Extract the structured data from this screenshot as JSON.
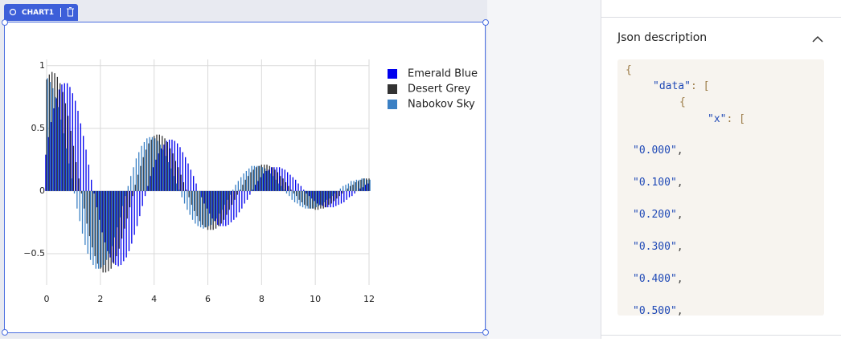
{
  "toolbar": {
    "tab_label": "CHART1"
  },
  "chart_data": {
    "type": "bar",
    "x": [
      0,
      0.1,
      0.2,
      0.3,
      0.4,
      0.5,
      0.6,
      0.7,
      0.8,
      0.9,
      1,
      1.1,
      1.2,
      1.3,
      1.4,
      1.5,
      1.6,
      1.7,
      1.8,
      1.9,
      2,
      2.1,
      2.2,
      2.3,
      2.4,
      2.5,
      2.6,
      2.7,
      2.8,
      2.9,
      3,
      3.1,
      3.2,
      3.3,
      3.4,
      3.5,
      3.6,
      3.7,
      3.8,
      3.9,
      4,
      4.1,
      4.2,
      4.3,
      4.4,
      4.5,
      4.6,
      4.7,
      4.8,
      4.9,
      5,
      5.1,
      5.2,
      5.3,
      5.4,
      5.5,
      5.6,
      5.7,
      5.8,
      5.9,
      6,
      6.1,
      6.2,
      6.3,
      6.4,
      6.5,
      6.6,
      6.7,
      6.8,
      6.9,
      7,
      7.1,
      7.2,
      7.3,
      7.4,
      7.5,
      7.6,
      7.7,
      7.8,
      7.9,
      8,
      8.1,
      8.2,
      8.3,
      8.4,
      8.5,
      8.6,
      8.7,
      8.8,
      8.9,
      9,
      9.1,
      9.2,
      9.3,
      9.4,
      9.5,
      9.6,
      9.7,
      9.8,
      9.9,
      10,
      10.1,
      10.2,
      10.3,
      10.4,
      10.5,
      10.6,
      10.7,
      10.8,
      10.9,
      11,
      11.1,
      11.2,
      11.3,
      11.4,
      11.5,
      11.6,
      11.7,
      11.8,
      11.9,
      12
    ],
    "series": [
      {
        "name": "Emerald Blue",
        "color": "#0000ee",
        "values": [
          0.29,
          0.43,
          0.55,
          0.66,
          0.74,
          0.81,
          0.85,
          0.86,
          0.86,
          0.83,
          0.78,
          0.72,
          0.64,
          0.54,
          0.44,
          0.33,
          0.21,
          0.09,
          -0.02,
          -0.13,
          -0.23,
          -0.33,
          -0.41,
          -0.48,
          -0.53,
          -0.57,
          -0.59,
          -0.6,
          -0.59,
          -0.56,
          -0.53,
          -0.48,
          -0.42,
          -0.35,
          -0.28,
          -0.2,
          -0.12,
          -0.04,
          0.04,
          0.12,
          0.19,
          0.25,
          0.3,
          0.34,
          0.37,
          0.4,
          0.41,
          0.41,
          0.4,
          0.38,
          0.35,
          0.31,
          0.27,
          0.22,
          0.17,
          0.12,
          0.06,
          0,
          -0.05,
          -0.1,
          -0.14,
          -0.18,
          -0.22,
          -0.24,
          -0.27,
          -0.28,
          -0.28,
          -0.28,
          -0.27,
          -0.25,
          -0.23,
          -0.21,
          -0.17,
          -0.14,
          -0.1,
          -0.07,
          -0.03,
          0.01,
          0.05,
          0.08,
          0.11,
          0.14,
          0.16,
          0.17,
          0.19,
          0.19,
          0.19,
          0.19,
          0.18,
          0.17,
          0.15,
          0.13,
          0.11,
          0.09,
          0.06,
          0.04,
          0.01,
          -0.02,
          -0.04,
          -0.06,
          -0.08,
          -0.1,
          -0.11,
          -0.12,
          -0.13,
          -0.13,
          -0.13,
          -0.13,
          -0.12,
          -0.11,
          -0.1,
          -0.09,
          -0.07,
          -0.05,
          -0.04,
          -0.02,
          0,
          0.02,
          0.03,
          0.05,
          0.06
        ]
      },
      {
        "name": "Desert Grey",
        "color": "#333333",
        "values": [
          0.89,
          0.93,
          0.95,
          0.94,
          0.91,
          0.86,
          0.79,
          0.7,
          0.6,
          0.48,
          0.36,
          0.23,
          0.1,
          -0.02,
          -0.14,
          -0.26,
          -0.36,
          -0.45,
          -0.52,
          -0.58,
          -0.62,
          -0.65,
          -0.65,
          -0.64,
          -0.62,
          -0.58,
          -0.52,
          -0.46,
          -0.38,
          -0.3,
          -0.22,
          -0.13,
          -0.04,
          0.05,
          0.13,
          0.2,
          0.27,
          0.33,
          0.38,
          0.41,
          0.44,
          0.45,
          0.45,
          0.44,
          0.42,
          0.39,
          0.34,
          0.3,
          0.24,
          0.19,
          0.13,
          0.07,
          0.01,
          -0.05,
          -0.11,
          -0.16,
          -0.2,
          -0.24,
          -0.27,
          -0.29,
          -0.31,
          -0.31,
          -0.31,
          -0.3,
          -0.28,
          -0.26,
          -0.23,
          -0.19,
          -0.15,
          -0.11,
          -0.07,
          -0.03,
          0.01,
          0.05,
          0.09,
          0.12,
          0.15,
          0.17,
          0.19,
          0.2,
          0.21,
          0.21,
          0.21,
          0.2,
          0.19,
          0.17,
          0.15,
          0.12,
          0.1,
          0.07,
          0.04,
          0.01,
          -0.02,
          -0.04,
          -0.07,
          -0.09,
          -0.11,
          -0.12,
          -0.14,
          -0.14,
          -0.15,
          -0.15,
          -0.14,
          -0.14,
          -0.13,
          -0.11,
          -0.1,
          -0.08,
          -0.06,
          -0.04,
          -0.02,
          0,
          0.02,
          0.04,
          0.05,
          0.07,
          0.08,
          0.09,
          0.1,
          0.1,
          0.1
        ]
      },
      {
        "name": "Nabokov Sky",
        "color": "#3b80c4",
        "values": [
          0.9,
          0.87,
          0.82,
          0.75,
          0.67,
          0.57,
          0.46,
          0.34,
          0.22,
          0.1,
          -0.02,
          -0.14,
          -0.24,
          -0.34,
          -0.43,
          -0.5,
          -0.55,
          -0.59,
          -0.62,
          -0.62,
          -0.61,
          -0.59,
          -0.55,
          -0.5,
          -0.44,
          -0.37,
          -0.29,
          -0.21,
          -0.12,
          -0.04,
          0.04,
          0.12,
          0.19,
          0.26,
          0.31,
          0.36,
          0.39,
          0.42,
          0.43,
          0.43,
          0.42,
          0.4,
          0.37,
          0.33,
          0.28,
          0.23,
          0.18,
          0.12,
          0.06,
          0.01,
          -0.05,
          -0.1,
          -0.15,
          -0.19,
          -0.23,
          -0.26,
          -0.28,
          -0.29,
          -0.3,
          -0.29,
          -0.28,
          -0.27,
          -0.24,
          -0.22,
          -0.18,
          -0.15,
          -0.11,
          -0.07,
          -0.03,
          0.01,
          0.05,
          0.08,
          0.11,
          0.14,
          0.16,
          0.18,
          0.2,
          0.2,
          0.2,
          0.2,
          0.19,
          0.18,
          0.16,
          0.14,
          0.12,
          0.09,
          0.06,
          0.04,
          0.01,
          -0.02,
          -0.04,
          -0.07,
          -0.09,
          -0.1,
          -0.12,
          -0.13,
          -0.14,
          -0.14,
          -0.14,
          -0.14,
          -0.13,
          -0.12,
          -0.11,
          -0.09,
          -0.07,
          -0.06,
          -0.04,
          -0.02,
          0,
          0.02,
          0.04,
          0.05,
          0.06,
          0.08,
          0.08,
          0.09,
          0.09,
          0.1,
          0.1,
          0.09,
          0.09
        ]
      }
    ],
    "xlim": [
      0,
      12
    ],
    "xticks": [
      0,
      2,
      4,
      6,
      8,
      10,
      12
    ],
    "ylim": [
      -0.75,
      1.05
    ],
    "yticks": [
      {
        "value": -0.5,
        "label": "−0.5"
      },
      0,
      0.5,
      1
    ],
    "grid": true,
    "legend": "right"
  },
  "panel": {
    "title": "Json description",
    "code": [
      [
        "{"
      ],
      [
        "\"data\"",
        ": ["
      ],
      [
        "{"
      ],
      [
        "\"x\"",
        ": ["
      ],
      [
        "\"0.000\"",
        ","
      ],
      [
        "\"0.100\"",
        ","
      ],
      [
        "\"0.200\"",
        ","
      ],
      [
        "\"0.300\"",
        ","
      ],
      [
        "\"0.400\"",
        ","
      ],
      [
        "\"0.500\"",
        ","
      ]
    ]
  }
}
